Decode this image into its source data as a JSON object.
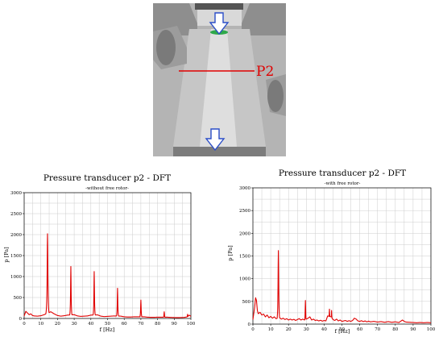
{
  "scene": {
    "label": "P2",
    "colors": {
      "body": "#9a9a9a",
      "marker_line": "#e00000",
      "arrow": "#2b4ec8",
      "plate": "#2ea84a"
    }
  },
  "charts": [
    {
      "type": "line",
      "title": "Pressure transducer p2 - DFT",
      "subtitle": "-without free rotor-",
      "xlabel": "f [Hz]",
      "ylabel": "p [Pa]",
      "xlim": [
        0,
        100
      ],
      "ylim": [
        0,
        3000
      ],
      "xticks": [
        "0",
        "10",
        "20",
        "30",
        "40",
        "50",
        "60",
        "70",
        "80",
        "90",
        "100"
      ],
      "yticks": [
        "0",
        "500",
        "1000",
        "1500",
        "2000",
        "2500",
        "3000"
      ],
      "grid": true,
      "line_color": "#e00000",
      "baseline": [
        [
          0,
          60
        ],
        [
          1,
          170
        ],
        [
          2,
          130
        ],
        [
          3,
          90
        ],
        [
          4,
          110
        ],
        [
          5,
          70
        ],
        [
          6,
          60
        ],
        [
          8,
          55
        ],
        [
          10,
          65
        ],
        [
          12,
          90
        ],
        [
          16,
          160
        ],
        [
          18,
          110
        ],
        [
          20,
          70
        ],
        [
          22,
          55
        ],
        [
          24,
          65
        ],
        [
          26,
          80
        ],
        [
          30,
          90
        ],
        [
          32,
          60
        ],
        [
          34,
          50
        ],
        [
          36,
          55
        ],
        [
          38,
          60
        ],
        [
          40,
          80
        ],
        [
          44,
          85
        ],
        [
          46,
          55
        ],
        [
          48,
          45
        ],
        [
          50,
          50
        ],
        [
          52,
          55
        ],
        [
          54,
          60
        ],
        [
          58,
          55
        ],
        [
          60,
          40
        ],
        [
          62,
          35
        ],
        [
          64,
          35
        ],
        [
          66,
          40
        ],
        [
          68,
          40
        ],
        [
          72,
          40
        ],
        [
          74,
          30
        ],
        [
          76,
          28
        ],
        [
          78,
          28
        ],
        [
          80,
          30
        ],
        [
          82,
          30
        ],
        [
          86,
          30
        ],
        [
          88,
          25
        ],
        [
          90,
          22
        ],
        [
          92,
          20
        ],
        [
          94,
          22
        ],
        [
          96,
          25
        ],
        [
          98,
          40
        ],
        [
          99,
          80
        ],
        [
          100,
          50
        ]
      ],
      "peaks": [
        {
          "f": 14,
          "p": 2020,
          "w": 0.6
        },
        {
          "f": 28,
          "p": 1240,
          "w": 0.45
        },
        {
          "f": 42,
          "p": 1120,
          "w": 0.45
        },
        {
          "f": 56,
          "p": 720,
          "w": 0.45
        },
        {
          "f": 70,
          "p": 440,
          "w": 0.45
        },
        {
          "f": 84,
          "p": 160,
          "w": 0.45
        },
        {
          "f": 98,
          "p": 100,
          "w": 0.45
        }
      ]
    },
    {
      "type": "line",
      "title": "Pressure transducer p2 - DFT",
      "subtitle": "-with free rotor-",
      "xlabel": "f [Hz]",
      "ylabel": "p [Pa]",
      "xlim": [
        0,
        100
      ],
      "ylim": [
        0,
        3000
      ],
      "xticks": [
        "0",
        "10",
        "20",
        "30",
        "40",
        "50",
        "60",
        "70",
        "80",
        "90",
        "100"
      ],
      "yticks": [
        "0",
        "500",
        "1000",
        "1500",
        "2000",
        "2500",
        "3000"
      ],
      "grid": true,
      "line_color": "#e00000",
      "baseline": [
        [
          0,
          100
        ],
        [
          1,
          380
        ],
        [
          1.5,
          580
        ],
        [
          2,
          520
        ],
        [
          2.5,
          300
        ],
        [
          3,
          230
        ],
        [
          4,
          260
        ],
        [
          5,
          200
        ],
        [
          6,
          220
        ],
        [
          7,
          160
        ],
        [
          8,
          200
        ],
        [
          9,
          140
        ],
        [
          10,
          170
        ],
        [
          11,
          130
        ],
        [
          12,
          160
        ],
        [
          13,
          120
        ],
        [
          15,
          140
        ],
        [
          16,
          110
        ],
        [
          17,
          130
        ],
        [
          18,
          100
        ],
        [
          19,
          120
        ],
        [
          20,
          90
        ],
        [
          21,
          110
        ],
        [
          22,
          90
        ],
        [
          23,
          105
        ],
        [
          24,
          80
        ],
        [
          25,
          100
        ],
        [
          26,
          120
        ],
        [
          27,
          90
        ],
        [
          28,
          110
        ],
        [
          29,
          90
        ],
        [
          31,
          130
        ],
        [
          32,
          160
        ],
        [
          33,
          90
        ],
        [
          34,
          110
        ],
        [
          35,
          80
        ],
        [
          36,
          90
        ],
        [
          37,
          70
        ],
        [
          38,
          85
        ],
        [
          39,
          65
        ],
        [
          40,
          80
        ],
        [
          41,
          70
        ],
        [
          42,
          180
        ],
        [
          44,
          160
        ],
        [
          45,
          100
        ],
        [
          46,
          80
        ],
        [
          47,
          110
        ],
        [
          48,
          70
        ],
        [
          49,
          90
        ],
        [
          50,
          60
        ],
        [
          52,
          80
        ],
        [
          53,
          60
        ],
        [
          54,
          75
        ],
        [
          55,
          60
        ],
        [
          56,
          80
        ],
        [
          57,
          130
        ],
        [
          58,
          110
        ],
        [
          59,
          70
        ],
        [
          60,
          60
        ],
        [
          61,
          75
        ],
        [
          62,
          55
        ],
        [
          63,
          70
        ],
        [
          64,
          50
        ],
        [
          65,
          65
        ],
        [
          66,
          50
        ],
        [
          68,
          60
        ],
        [
          70,
          45
        ],
        [
          72,
          55
        ],
        [
          74,
          40
        ],
        [
          76,
          55
        ],
        [
          78,
          40
        ],
        [
          80,
          50
        ],
        [
          82,
          35
        ],
        [
          84,
          90
        ],
        [
          85,
          60
        ],
        [
          86,
          45
        ],
        [
          88,
          40
        ],
        [
          90,
          35
        ],
        [
          92,
          30
        ],
        [
          94,
          35
        ],
        [
          96,
          30
        ],
        [
          98,
          35
        ],
        [
          100,
          30
        ]
      ],
      "peaks": [
        {
          "f": 14.3,
          "p": 1620,
          "w": 0.5
        },
        {
          "f": 29.5,
          "p": 520,
          "w": 0.4
        },
        {
          "f": 43,
          "p": 330,
          "w": 0.4
        },
        {
          "f": 44.2,
          "p": 300,
          "w": 0.35
        }
      ]
    }
  ]
}
